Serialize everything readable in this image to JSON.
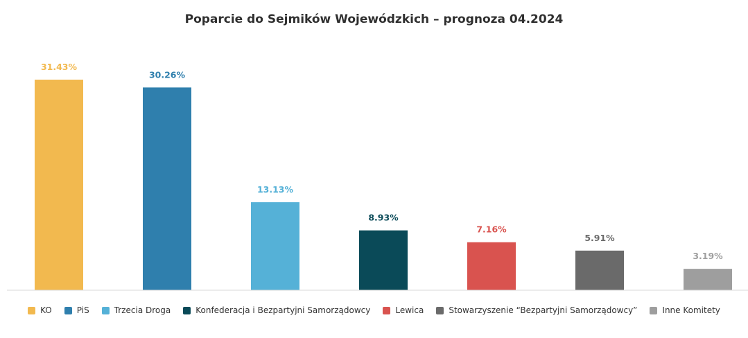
{
  "chart_data": {
    "type": "bar",
    "title": "Poparcie do Sejmików Wojewódzkich – prognoza 04.2024",
    "xlabel": "",
    "ylabel": "",
    "ylim": [
      0,
      31.43
    ],
    "grid": false,
    "legend_position": "bottom",
    "categories": [
      "KO",
      "PiS",
      "Trzecia Droga",
      "Konfederacja i Bezpartyjni Samorządowcy",
      "Lewica",
      "Stowarzyszenie “Bezpartyjni Samorządowcy”",
      "Inne Komitety"
    ],
    "values": [
      31.43,
      30.26,
      13.13,
      8.93,
      7.16,
      5.91,
      3.19
    ],
    "labels": [
      "31.43%",
      "30.26%",
      "13.13%",
      "8.93%",
      "7.16%",
      "5.91%",
      "3.19%"
    ],
    "colors": [
      "#f2b94f",
      "#2f7fad",
      "#55b1d7",
      "#0a4a58",
      "#d9534f",
      "#6a6a6a",
      "#9e9e9e"
    ]
  }
}
